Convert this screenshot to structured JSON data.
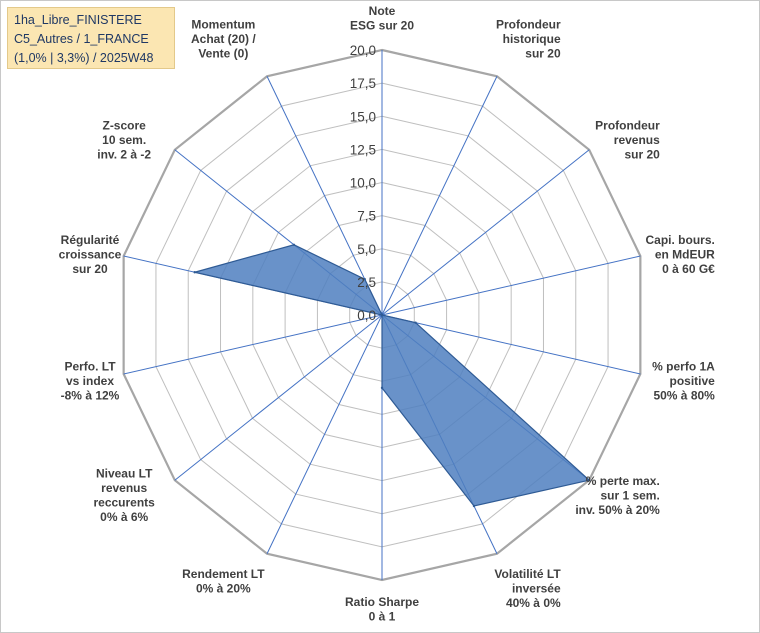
{
  "info_box": {
    "line1": "1ha_Libre_FINISTERE",
    "line2": "C5_Autres / 1_FRANCE",
    "line3": "(1,0% | 3,3%) / 2025W48"
  },
  "chart_data": {
    "type": "radar",
    "rlim": [
      0,
      20
    ],
    "ticks": [
      "0,0",
      "2,5",
      "5,0",
      "7,5",
      "10,0",
      "12,5",
      "15,0",
      "17,5",
      "20,0"
    ],
    "axes": [
      [
        "Note",
        "ESG sur 20"
      ],
      [
        "Profondeur",
        "historique",
        "sur 20"
      ],
      [
        "Profondeur",
        "revenus",
        "sur 20"
      ],
      [
        "Capi. bours.",
        "en MdEUR",
        "0 à 60 G€"
      ],
      [
        "% perfo 1A",
        "positive",
        "50% à 80%"
      ],
      [
        "% perte max.",
        "sur 1 sem.",
        "inv. 50% à 20%"
      ],
      [
        "Volatilité LT",
        "inversée",
        "40% à 0%"
      ],
      [
        "Ratio Sharpe",
        "0 à 1"
      ],
      [
        "Rendement LT",
        "0% à 20%"
      ],
      [
        "Niveau LT",
        "revenus",
        "reccurents",
        "0% à 6%"
      ],
      [
        "Perfo. LT",
        "vs index",
        "-8% à 12%"
      ],
      [
        "Régularité",
        "croissance",
        "sur 20"
      ],
      [
        "Z-score",
        "10 sem.",
        "inv. 2 à -2"
      ],
      [
        "Momentum",
        "Achat (20) /",
        "Vente (0)"
      ]
    ],
    "series": [
      {
        "values": [
          0,
          0,
          0,
          0,
          2.6,
          20,
          16,
          5.5,
          0,
          0,
          0,
          14.5,
          8.5,
          3.0
        ]
      }
    ],
    "colors": {
      "fill": "#4f7fbf",
      "edge": "#2f5b95",
      "grid": "#bfbfbf",
      "spoke": "#4472c4"
    },
    "grid": true,
    "legend": "none"
  }
}
